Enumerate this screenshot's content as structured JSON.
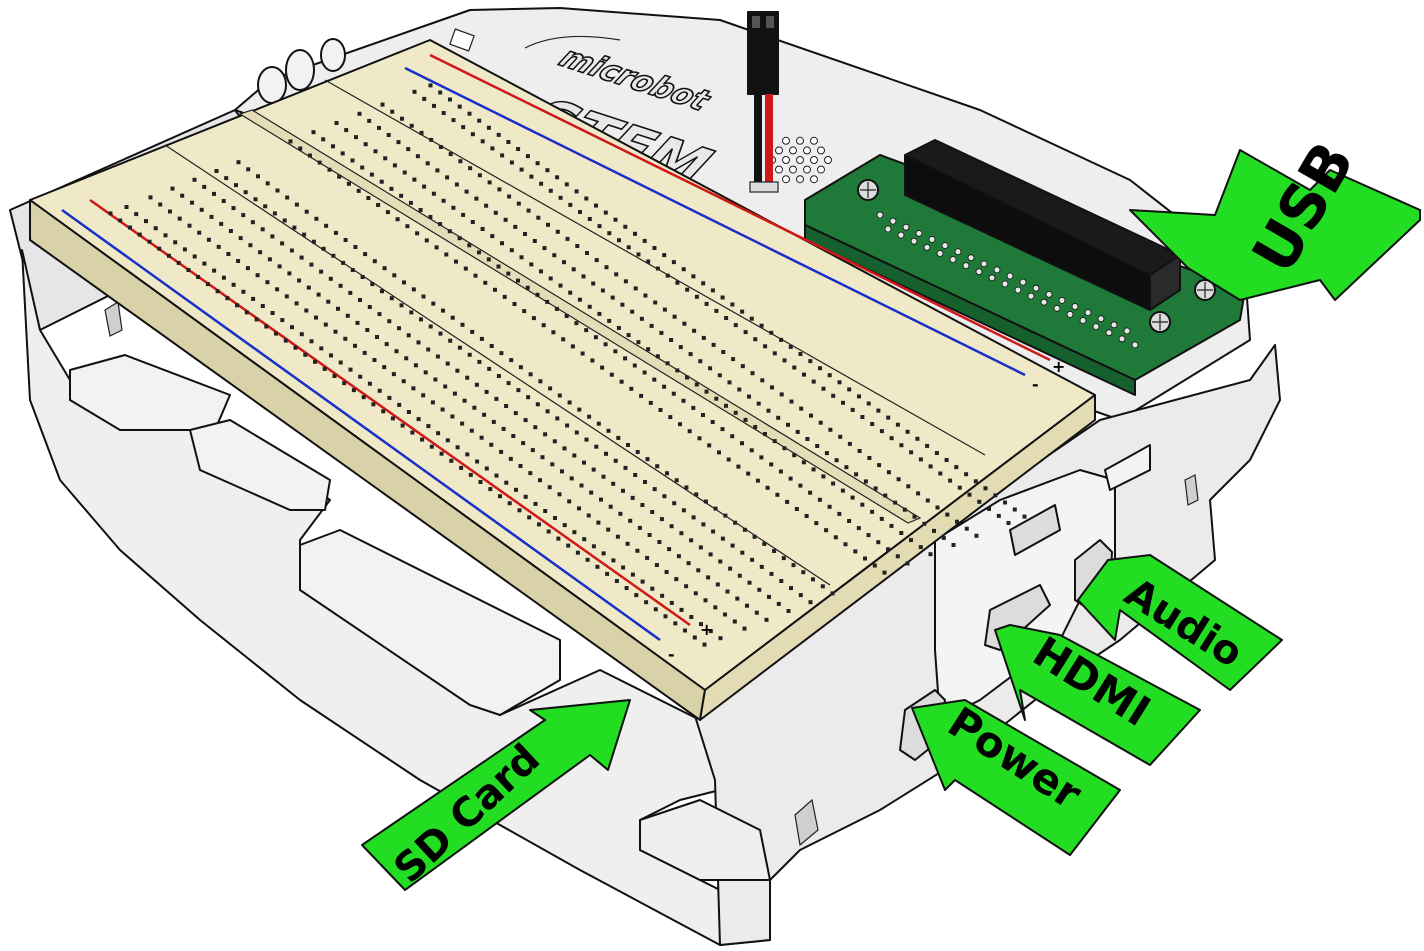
{
  "logo": {
    "line1": "microbot",
    "line2": "STEM"
  },
  "breadboard": {
    "plus_label": "+",
    "minus_label": "-",
    "rail_colors": {
      "positive": "#d01818",
      "negative": "#1830c8"
    }
  },
  "callouts": {
    "usb": "USB",
    "audio": "Audio",
    "hdmi": "HDMI",
    "power": "Power",
    "sd_card": "SD Card"
  },
  "colors": {
    "callout_fill": "#22dd22",
    "breadboard_fill": "#efe9c8",
    "breadboard_side": "#d9d2a8",
    "case_fill": "#eeeeee",
    "pcb_fill": "#1f7a3a",
    "header_fill": "#1a1a1a",
    "wire_red": "#d01818",
    "wire_black": "#111111"
  }
}
